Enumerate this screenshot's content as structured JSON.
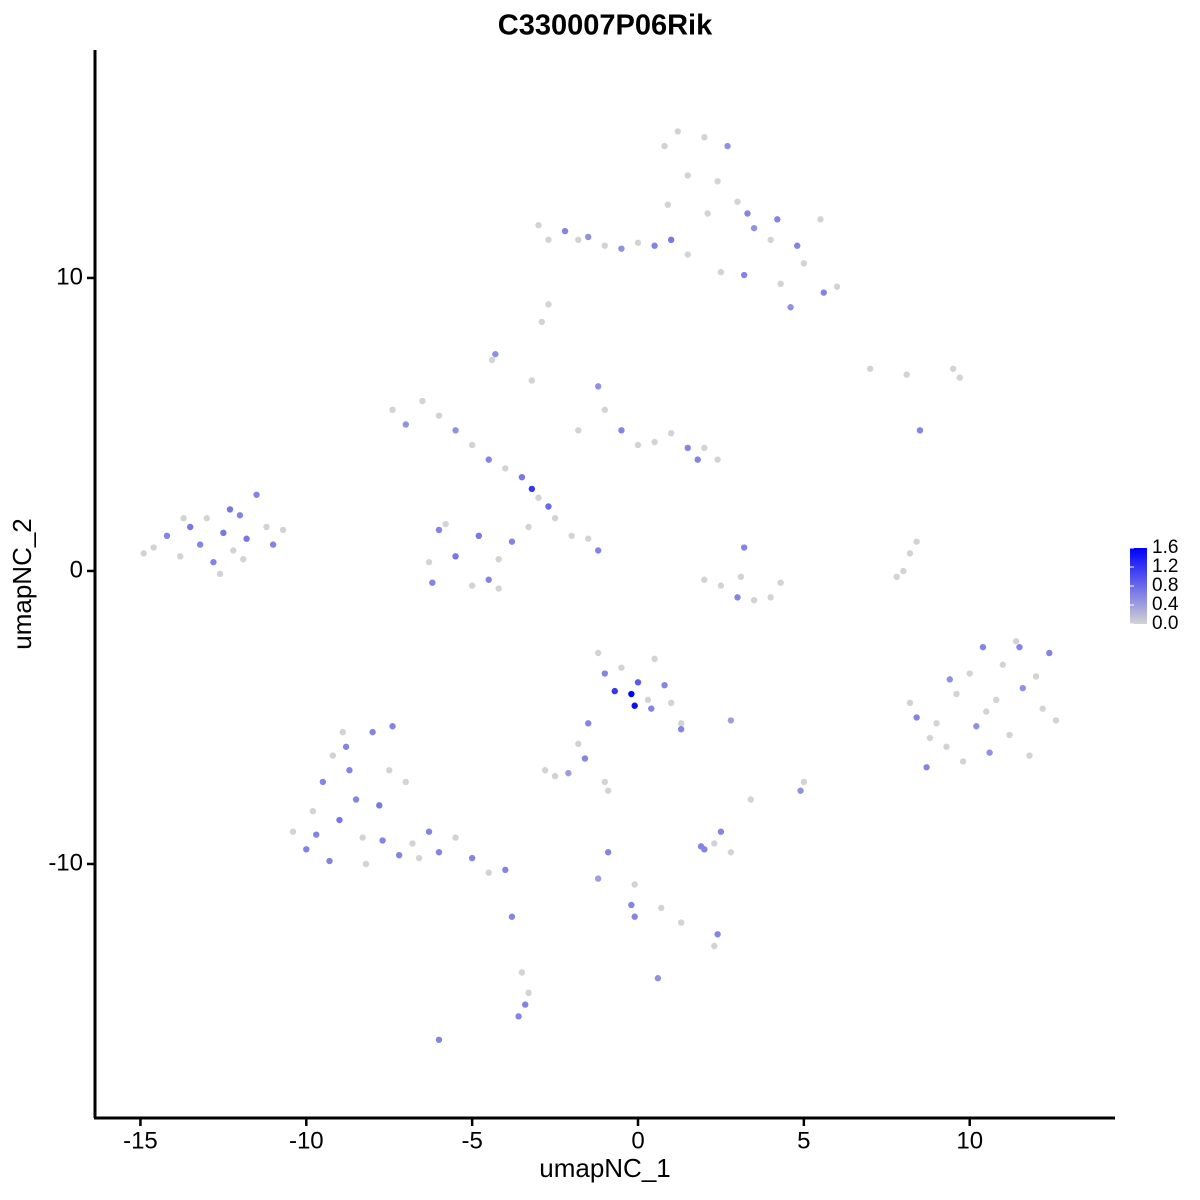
{
  "chart_data": {
    "type": "scatter",
    "title": "C330007P06Rik",
    "x_label": "umapNC_1",
    "y_label": "umapNC_2",
    "xlim": [
      -16.37,
      14.38
    ],
    "ylim": [
      -18.67,
      17.78
    ],
    "xticks": [
      -15,
      -10,
      -5,
      0,
      5,
      10
    ],
    "yticks": [
      -10,
      0,
      10
    ],
    "color_lim": [
      0,
      1.6
    ],
    "low_color": "#d3d3d3",
    "high_color": "#0000ff",
    "color_ticks": [
      {
        "value": 0,
        "label": "0.0"
      },
      {
        "value": 0.4,
        "label": "0.4"
      },
      {
        "value": 0.8,
        "label": "0.8"
      },
      {
        "value": 1.2,
        "label": "1.2"
      },
      {
        "value": 1.6,
        "label": "1.6"
      }
    ],
    "x": [
      -14.6,
      -14.2,
      -13.8,
      -13.5,
      -13.2,
      -13,
      -12.8,
      -12.5,
      -12.2,
      -12,
      -11.8,
      -11.5,
      -11.2,
      -11,
      -10.7,
      -12.6,
      -13.7,
      -14.9,
      -12.3,
      -11.9,
      -7.4,
      -7,
      -6.5,
      -6,
      -5.5,
      -5,
      -4.5,
      -4,
      -3.5,
      -3.2,
      -3,
      -2.7,
      -2.5,
      -3.3,
      -3.8,
      -4.2,
      -4.5,
      -5,
      -5.5,
      -6,
      -6.3,
      -6.2,
      -5.8,
      -4.8,
      -4.2,
      -3.2,
      -4.3,
      -4.4,
      -1.2,
      -1,
      -0.5,
      0,
      0.5,
      1,
      1.5,
      2,
      2.4,
      1.8,
      -1.8,
      -2,
      -1.5,
      -1.2,
      -3,
      -2.7,
      -2.2,
      -1.8,
      -1.5,
      -1,
      -0.5,
      0,
      0.5,
      1,
      1.5,
      2.5,
      0.8,
      1.2,
      1.5,
      0.9,
      2,
      2.7,
      2.4,
      2.1,
      3,
      3.3,
      3.5,
      4,
      4.2,
      4.8,
      5,
      5.5,
      5.6,
      6,
      4.6,
      4.3,
      3.2,
      -2.9,
      -2.7,
      2,
      2.5,
      3,
      3.5,
      4,
      4.3,
      3.2,
      3.1,
      8.2,
      8.4,
      8.7,
      9,
      9.3,
      9.6,
      9.8,
      10,
      10.2,
      10.4,
      10.6,
      10.8,
      11,
      11.2,
      11.4,
      11.6,
      11.8,
      12,
      12.2,
      12.4,
      9.4,
      10.5,
      8.8,
      11.5,
      12.6,
      -10.4,
      -10,
      -9.8,
      -9.5,
      -9.3,
      -9,
      -8.8,
      -8.5,
      -8.3,
      -8,
      -7.8,
      -7.5,
      -7.2,
      -7,
      -8.7,
      -9.2,
      -7.7,
      -6.8,
      -6.3,
      -6,
      -5.5,
      -5,
      -4.5,
      -4,
      -3.8,
      -8.9,
      -9.7,
      -8.2,
      -7.4,
      -6.6,
      -1.2,
      -1,
      -0.7,
      -0.5,
      -0.2,
      0,
      0.3,
      0.5,
      0.8,
      0.4,
      1,
      1.3,
      1.3,
      -1.5,
      -1.8,
      -1.6,
      2.8,
      -0.1,
      -2.8,
      -2.5,
      -2.1,
      -1,
      -0.9,
      2,
      2.3,
      2.5,
      2.8,
      1.9,
      5,
      4.9,
      3.4,
      -0.1,
      -0.2,
      -0.1,
      0.7,
      1.3,
      2.4,
      2.3,
      -3.5,
      -3.4,
      -3.6,
      -3.3,
      -6,
      0.6,
      -1.2,
      -0.9,
      8,
      8.2,
      8.4,
      7.8,
      7,
      8.5,
      9.5,
      9.7,
      8.1
    ],
    "y": [
      0.8,
      1.2,
      0.5,
      1.5,
      0.9,
      1.8,
      0.3,
      1.3,
      0.7,
      1.9,
      1.1,
      2.6,
      1.5,
      0.9,
      1.4,
      -0.1,
      1.8,
      0.6,
      2.1,
      0.4,
      5.5,
      5,
      5.8,
      5.3,
      4.8,
      4.3,
      3.8,
      3.5,
      3.2,
      2.8,
      2.5,
      2.2,
      1.8,
      1.5,
      1,
      0.4,
      -0.3,
      -0.5,
      0.5,
      1.4,
      0.3,
      -0.4,
      1.6,
      1.2,
      -0.6,
      6.5,
      7.4,
      7.2,
      6.3,
      5.5,
      4.8,
      4.3,
      4.4,
      4.7,
      4.2,
      4.2,
      3.8,
      3.8,
      4.8,
      1.2,
      1.1,
      0.7,
      11.8,
      11.3,
      11.6,
      11.3,
      11.4,
      11.1,
      11,
      11.2,
      11.1,
      11.3,
      10.8,
      10.2,
      14.5,
      15,
      13.5,
      12.5,
      14.8,
      14.5,
      13.3,
      12.2,
      12.6,
      12.2,
      11.7,
      11.3,
      12,
      11.1,
      10.5,
      12,
      9.5,
      9.7,
      9,
      9.8,
      10.1,
      8.5,
      9.1,
      -0.3,
      -0.5,
      -0.9,
      -1,
      -0.9,
      -0.4,
      0.8,
      -0.2,
      -4.5,
      -5,
      -6.7,
      -5.2,
      -6,
      -4.2,
      -6.5,
      -3.5,
      -5.3,
      -2.6,
      -6.2,
      -4.4,
      -3.2,
      -5.6,
      -2.4,
      -4,
      -6.3,
      -3.6,
      -4.7,
      -2.8,
      -3.7,
      -4.8,
      -5.7,
      -2.6,
      -5.1,
      -8.9,
      -9.5,
      -8.2,
      -7.2,
      -9.9,
      -8.5,
      -6,
      -7.8,
      -9.1,
      -5.5,
      -8,
      -6.8,
      -9.7,
      -7.2,
      -6.8,
      -6.3,
      -9.2,
      -9.3,
      -8.9,
      -9.6,
      -9.1,
      -9.8,
      -10.3,
      -10.2,
      -11.8,
      -5.5,
      -9,
      -10,
      -5.3,
      -9.8,
      -2.8,
      -3.5,
      -4.1,
      -3.3,
      -4.2,
      -3.8,
      -4.4,
      -3,
      -3.9,
      -4.7,
      -4.5,
      -5.2,
      -5.4,
      -5.2,
      -5.9,
      -6.4,
      -5.1,
      -4.6,
      -6.8,
      -7,
      -6.9,
      -7.2,
      -7.5,
      -9.5,
      -9.3,
      -8.9,
      -9.6,
      -9.4,
      -7.2,
      -7.5,
      -7.8,
      -10.7,
      -11.4,
      -11.8,
      -11.5,
      -12,
      -12.4,
      -12.8,
      -13.7,
      -14.8,
      -15.2,
      -14.4,
      -16,
      -13.9,
      -10.5,
      -9.6,
      0,
      0.6,
      1,
      -0.2,
      6.9,
      4.8,
      6.9,
      6.6,
      6.7
    ],
    "values": [
      0,
      0.6,
      0,
      0.7,
      0.6,
      0,
      0.6,
      0.7,
      0,
      0.6,
      0.7,
      0.6,
      0,
      0.6,
      0,
      0,
      0,
      0,
      0.7,
      0,
      0,
      0.5,
      0,
      0,
      0.5,
      0,
      0.6,
      0,
      0.7,
      1.2,
      0,
      0.8,
      0,
      0,
      0.6,
      0,
      0.6,
      0,
      0.7,
      0.6,
      0,
      0.6,
      0,
      0.7,
      0,
      0,
      0.5,
      0,
      0.5,
      0,
      0.6,
      0,
      0,
      0,
      0.6,
      0,
      0,
      0.6,
      0,
      0,
      0,
      0.6,
      0,
      0,
      0.6,
      0,
      0.5,
      0,
      0.5,
      0,
      0.6,
      0.7,
      0,
      0,
      0,
      0,
      0,
      0,
      0,
      0.5,
      0,
      0,
      0,
      0.6,
      0.5,
      0,
      0.6,
      0.6,
      0,
      0,
      0.6,
      0,
      0.5,
      0,
      0.6,
      0,
      0,
      0,
      0,
      0.6,
      0,
      0,
      0,
      0.6,
      0,
      0,
      0.6,
      0.6,
      0,
      0,
      0,
      0,
      0,
      0.5,
      0.6,
      0.5,
      0,
      0,
      0,
      0,
      0.5,
      0,
      0,
      0,
      0.6,
      0.5,
      0,
      0,
      0.6,
      0,
      0,
      0.6,
      0,
      0.6,
      0.6,
      0.7,
      0.6,
      0.6,
      0,
      0.6,
      0.7,
      0,
      0.6,
      0,
      0.6,
      0,
      0.6,
      0,
      0.6,
      0.6,
      0,
      0.6,
      0,
      0.6,
      0.6,
      0,
      0.6,
      0,
      0.6,
      0,
      0,
      0.6,
      1.2,
      0,
      1.6,
      0.9,
      0,
      0,
      0.6,
      0.6,
      0,
      0,
      0.6,
      0.6,
      0,
      0.6,
      0.4,
      1.5,
      0,
      0,
      0.4,
      0,
      0,
      0.6,
      0,
      0.6,
      0,
      0.6,
      0,
      0.5,
      0,
      0,
      0.6,
      0.6,
      0,
      0,
      0.6,
      0,
      0,
      0.6,
      0.6,
      0,
      0.6,
      0.5,
      0.4,
      0.6,
      0,
      0,
      0,
      0,
      0,
      0.6,
      0,
      0,
      0
    ]
  }
}
